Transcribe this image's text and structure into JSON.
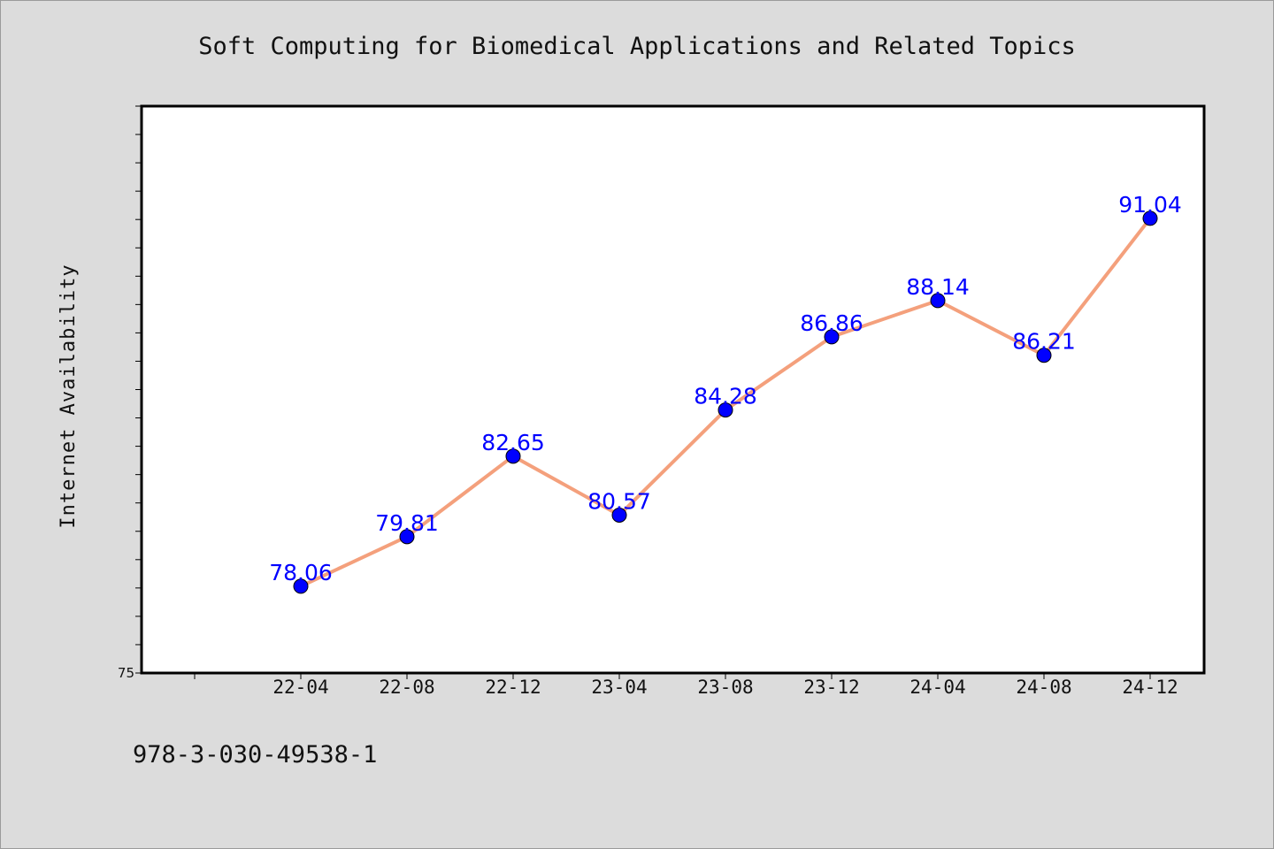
{
  "chart_data": {
    "type": "line",
    "title": "Soft Computing for Biomedical Applications and Related Topics",
    "xlabel": "",
    "ylabel": "Internet Availability",
    "categories": [
      "22-04",
      "22-08",
      "22-12",
      "23-04",
      "23-08",
      "23-12",
      "24-04",
      "24-08",
      "24-12"
    ],
    "series": [
      {
        "values": [
          78.06,
          79.81,
          82.65,
          80.57,
          84.28,
          86.86,
          88.14,
          86.21,
          91.04
        ],
        "line_color": "#f4a07c",
        "marker_color": "#0000ff"
      }
    ],
    "y_tick_label": "75",
    "ylim": [
      75,
      95
    ],
    "grid": false,
    "legend": "none"
  },
  "footer": {
    "isbn": "978-3-030-49538-1"
  },
  "colors": {
    "background": "#dcdcdc",
    "plot_area": "#ffffff",
    "data_label": "#0000ff"
  }
}
